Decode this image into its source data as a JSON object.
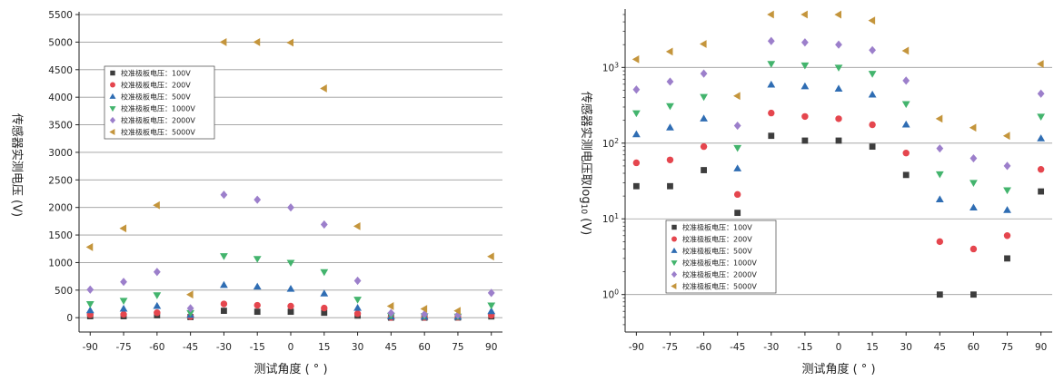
{
  "chart_data": [
    {
      "type": "scatter",
      "yscale": "linear",
      "xlabel": "测试角度 ( ° )",
      "ylabel": "传感器实测电压 (V)",
      "x": [
        -90,
        -75,
        -60,
        -45,
        -30,
        -15,
        0,
        15,
        30,
        45,
        60,
        75,
        90
      ],
      "xtick_labels": [
        "-90",
        "-75",
        "-60",
        "-45",
        "-30",
        "-15",
        "0",
        "15",
        "30",
        "45",
        "60",
        "75",
        "90"
      ],
      "xlim": [
        -95,
        95
      ],
      "ylim": [
        -260,
        5550
      ],
      "yticks": [
        0,
        500,
        1000,
        1500,
        2000,
        2500,
        3000,
        3500,
        4000,
        4500,
        5000,
        5500
      ],
      "ytick_labels": [
        "0",
        "500",
        "1000",
        "1500",
        "2000",
        "2500",
        "3000",
        "3500",
        "4000",
        "4500",
        "5000",
        "5500"
      ],
      "grid": "horizontal",
      "legend_loc": "upper left",
      "series": [
        {
          "name": "校准极板电压：100V",
          "marker": "square",
          "color": "#3d3d3d",
          "values": [
            27,
            27,
            44,
            12,
            125,
            108,
            108,
            90,
            38,
            1,
            1,
            3,
            23
          ]
        },
        {
          "name": "校准极板电压：200V",
          "marker": "circle",
          "color": "#e5464e",
          "values": [
            55,
            60,
            90,
            21,
            250,
            225,
            210,
            175,
            74,
            5,
            4,
            6,
            45
          ]
        },
        {
          "name": "校准极板电压：500V",
          "marker": "triangle-up",
          "color": "#2f6db3",
          "values": [
            130,
            160,
            210,
            46,
            590,
            560,
            520,
            435,
            175,
            18,
            14,
            13,
            115
          ]
        },
        {
          "name": "校准极板电压：1000V",
          "marker": "triangle-down",
          "color": "#43b46d",
          "values": [
            250,
            310,
            410,
            87,
            1120,
            1070,
            1000,
            830,
            330,
            39,
            30,
            24,
            225
          ]
        },
        {
          "name": "校准极板电压：2000V",
          "marker": "diamond",
          "color": "#9c7fcb",
          "values": [
            510,
            650,
            830,
            170,
            2230,
            2140,
            2000,
            1690,
            670,
            85,
            63,
            50,
            450
          ]
        },
        {
          "name": "校准极板电压：5000V",
          "marker": "triangle-left",
          "color": "#c4953c",
          "values": [
            1280,
            1620,
            2040,
            420,
            5000,
            5000,
            4990,
            4160,
            1660,
            210,
            160,
            125,
            1110
          ]
        }
      ]
    },
    {
      "type": "scatter",
      "yscale": "log",
      "xlabel": "测试角度 ( ° )",
      "ylabel": {
        "text": "传感器实测电压取log",
        "sub": "10",
        "suffix": " (V)"
      },
      "x": [
        -90,
        -75,
        -60,
        -45,
        -30,
        -15,
        0,
        15,
        30,
        45,
        60,
        75,
        90
      ],
      "xtick_labels": [
        "-90",
        "-75",
        "-60",
        "-45",
        "-30",
        "-15",
        "0",
        "15",
        "30",
        "45",
        "60",
        "75",
        "90"
      ],
      "xlim": [
        -95,
        95
      ],
      "ylim": [
        0.32,
        5900
      ],
      "yticks": [
        1,
        10,
        100,
        1000
      ],
      "ytick_labels": [
        {
          "base": "10",
          "exp": "0"
        },
        {
          "base": "10",
          "exp": "1"
        },
        {
          "base": "10",
          "exp": "2"
        },
        {
          "base": "10",
          "exp": "3"
        }
      ],
      "grid": "horizontal",
      "legend_loc": "lower left",
      "series": [
        {
          "name": "校准极板电压：100V",
          "marker": "square",
          "color": "#3d3d3d",
          "values": [
            27,
            27,
            44,
            12,
            125,
            108,
            108,
            90,
            38,
            1,
            1,
            3,
            23
          ]
        },
        {
          "name": "校准极板电压：200V",
          "marker": "circle",
          "color": "#e5464e",
          "values": [
            55,
            60,
            90,
            21,
            250,
            225,
            210,
            175,
            74,
            5,
            4,
            6,
            45
          ]
        },
        {
          "name": "校准极板电压：500V",
          "marker": "triangle-up",
          "color": "#2f6db3",
          "values": [
            130,
            160,
            210,
            46,
            590,
            560,
            520,
            435,
            175,
            18,
            14,
            13,
            115
          ]
        },
        {
          "name": "校准极板电压：1000V",
          "marker": "triangle-down",
          "color": "#43b46d",
          "values": [
            250,
            310,
            410,
            87,
            1120,
            1070,
            1000,
            830,
            330,
            39,
            30,
            24,
            225
          ]
        },
        {
          "name": "校准极板电压：2000V",
          "marker": "diamond",
          "color": "#9c7fcb",
          "values": [
            510,
            650,
            830,
            170,
            2230,
            2140,
            2000,
            1690,
            670,
            85,
            63,
            50,
            450
          ]
        },
        {
          "name": "校准极板电压：5000V",
          "marker": "triangle-left",
          "color": "#c4953c",
          "values": [
            1280,
            1620,
            2040,
            420,
            5000,
            5000,
            4990,
            4160,
            1660,
            210,
            160,
            125,
            1110
          ]
        }
      ]
    }
  ]
}
